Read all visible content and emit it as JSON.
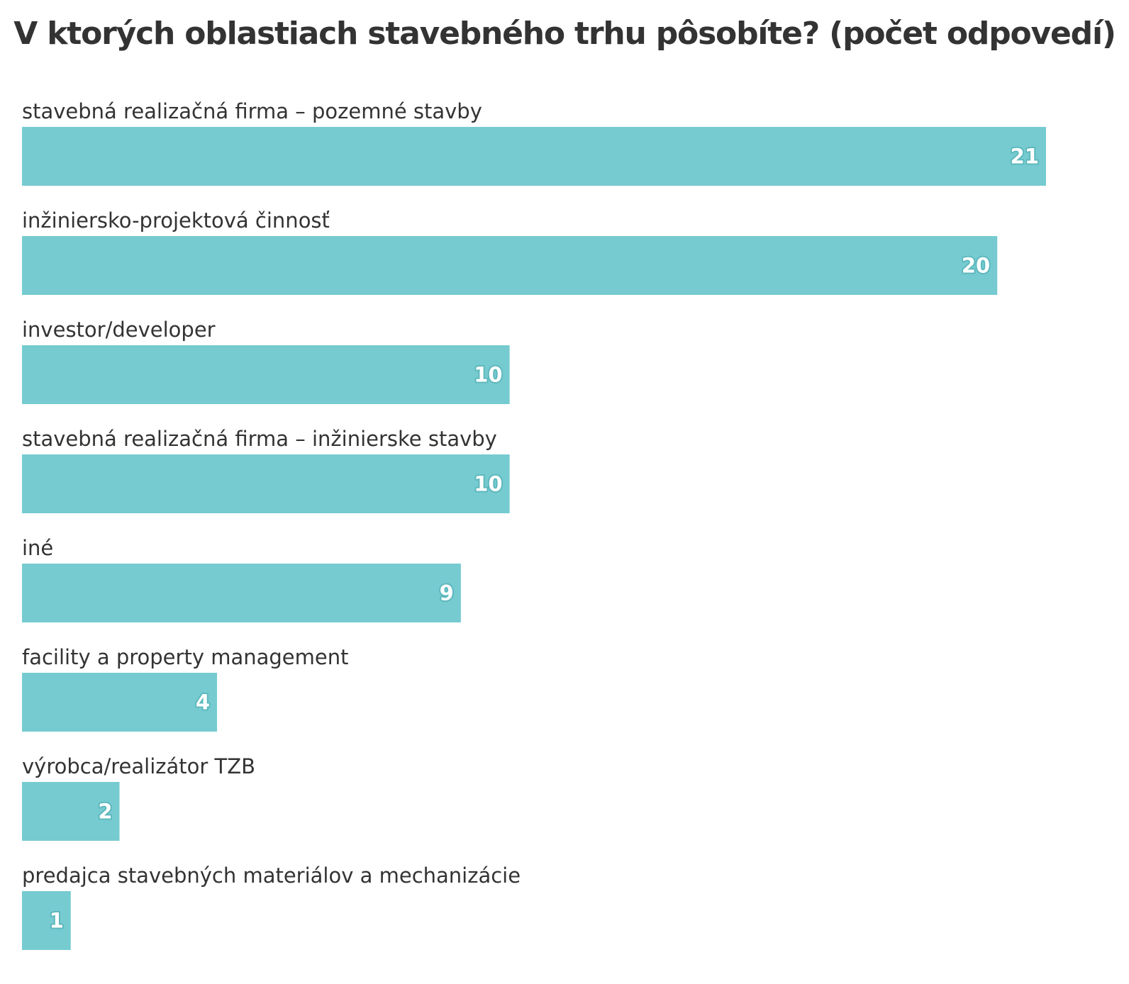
{
  "chart_data": {
    "type": "bar",
    "orientation": "horizontal",
    "title": "V ktorých oblastiach stavebného trhu pôsobíte? (počet odpovedí)",
    "xlabel": "",
    "ylabel": "",
    "xlim": [
      0,
      21
    ],
    "grid": false,
    "legend": "none",
    "bar_color": "#76cbd0",
    "categories": [
      "stavebná realizačná firma – pozemné stavby",
      "inžiniersko-projektová činnosť",
      "investor/developer",
      "stavebná realizačná firma – inžinierske stavby",
      "iné",
      "facility a property management",
      "výrobca/realizátor TZB",
      "predajca stavebných materiálov a mechanizácie"
    ],
    "values": [
      21,
      20,
      10,
      10,
      9,
      4,
      2,
      1
    ]
  }
}
